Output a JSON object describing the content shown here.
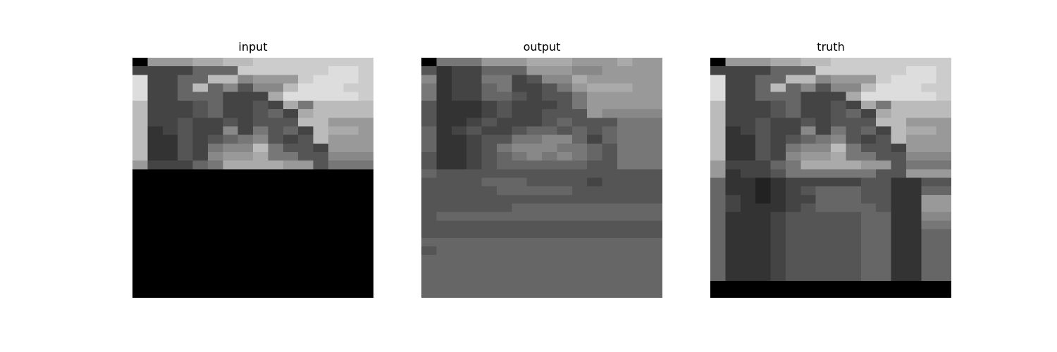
{
  "panels": [
    {
      "id": "input",
      "title": "input",
      "missing_from_row": 18,
      "rows": [
        "0999aabbcccccccc",
        "4444666ccccccddc",
        "d4466bb8999cdddc",
        "d446b68588bdddcc",
        "d44666444adddddc",
        "b444564454a7bbbb",
        "b4445644564abbbb",
        "b4454454555bb999",
        "b34544847564baa9",
        "b33545678545b999",
        "b3354788b7554999",
        "b3354899a7755888",
        "944467aaaa995777"
      ]
    },
    {
      "id": "output",
      "title": "output",
      "missing_from_row": 99,
      "rows": [
        "0777999aaa999a99",
        "5344666999889999",
        "8344774588a99999",
        "73446744579aaa99",
        "7344665455799999",
        "5333454445799999",
        "5333454455598888",
        "5334544456555777",
        "6345445665656777",
        "6334557788646777",
        "6334578887765777",
        "5334567878765777",
        "5334566666655777",
        "6555555555555555",
        "5555666555545555",
        "5555566666555555",
        "5555555555555555",
        "5555556666666666",
        "5666666666666666",
        "5555555555555555",
        "5555555555555555",
        "6666666666666666",
        "5666666666666666",
        "6666666666666666",
        "6666666666666666",
        "6666666666666666",
        "6666666666666666",
        "6666666666666666",
        "5555666566555555",
        "6666666666666666",
        "6666666666666666",
        "6666666666666666",
        "6666666666666666",
        "6666666666666666",
        "6666666666666666",
        "6666666666666666",
        "6666666666666666",
        "6666666666666666",
        "6666666666666666",
        "6666666666666666"
      ]
    },
    {
      "id": "truth",
      "title": "truth",
      "missing_from_row": 26,
      "rows": [
        "0999aabbcccccccc",
        "4444666ccccccddc",
        "d4466bb8999cdddc",
        "d446b68588bdddcc",
        "d44666444adddddc",
        "b444564454a7bbbb",
        "b4445644564abbbb",
        "b4454454555bb999",
        "b34544847564baa9",
        "b33545678545b999",
        "b3354788b7554999",
        "b3354899a7755888",
        "944467aaaa995777",
        "9344577777755999",
        "6332344444553355",
        "6332345666553366",
        "6432344666553399",
        "6433345666653399",
        "6333455555663388",
        "6333455555663377",
        "6333455555663366",
        "6333455555663366",
        "6333455555663366",
        "6333455555663366",
        "6333455555663366",
        "6333455555663366"
      ]
    }
  ]
}
